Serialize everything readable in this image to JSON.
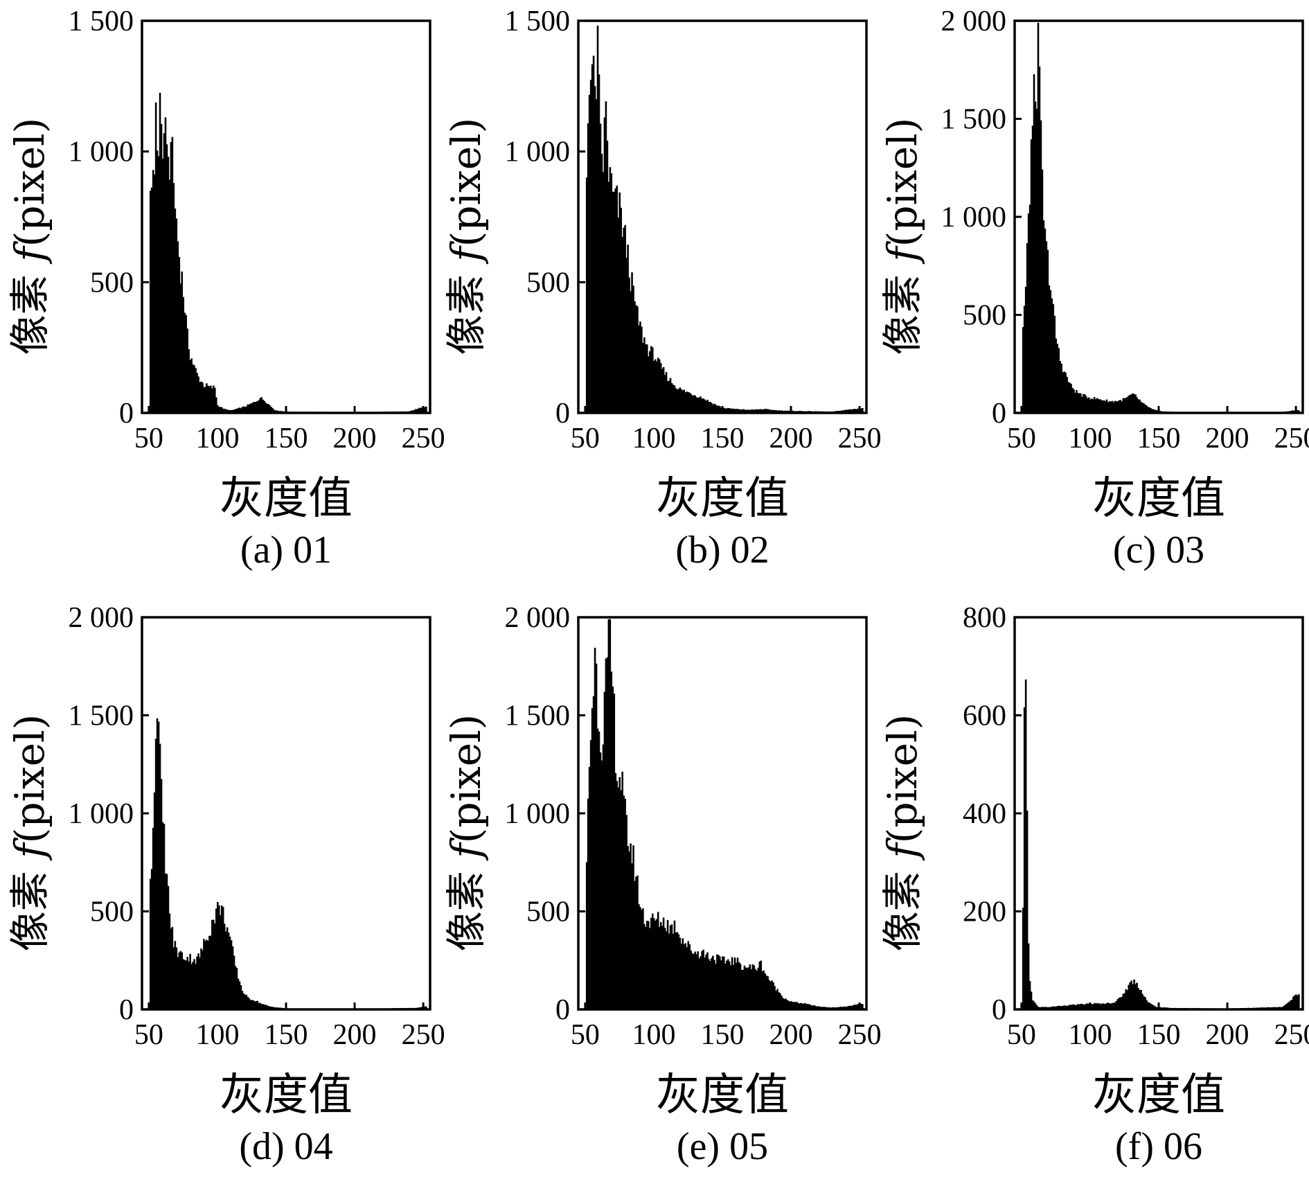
{
  "chart_data": [
    {
      "type": "bar",
      "caption": "(a) 01",
      "xlabel": "灰度值",
      "ylabel": {
        "prefix": "像素 ",
        "var": "f",
        "suffix": "(pixel)"
      },
      "xlim": [
        45,
        255
      ],
      "ylim": [
        0,
        1500
      ],
      "xticks": [
        50,
        100,
        150,
        200,
        250
      ],
      "yticks": [
        0,
        500,
        1000,
        1500
      ],
      "ytick_labels": [
        "0",
        "500",
        "1 000",
        "1 500"
      ],
      "histogram": {
        "x_start": 50,
        "x_end": 252,
        "anchors": [
          [
            50,
            0
          ],
          [
            51,
            880
          ],
          [
            53,
            960
          ],
          [
            55,
            1120
          ],
          [
            57,
            1050
          ],
          [
            58,
            1230
          ],
          [
            60,
            1000
          ],
          [
            61,
            1160
          ],
          [
            63,
            960
          ],
          [
            64,
            1100
          ],
          [
            65,
            880
          ],
          [
            66,
            1180
          ],
          [
            67,
            980
          ],
          [
            68,
            900
          ],
          [
            70,
            750
          ],
          [
            72,
            620
          ],
          [
            74,
            530
          ],
          [
            76,
            420
          ],
          [
            78,
            300
          ],
          [
            80,
            230
          ],
          [
            83,
            180
          ],
          [
            86,
            140
          ],
          [
            90,
            110
          ],
          [
            95,
            100
          ],
          [
            98,
            100
          ],
          [
            100,
            30
          ],
          [
            105,
            15
          ],
          [
            110,
            10
          ],
          [
            120,
            25
          ],
          [
            128,
            45
          ],
          [
            131,
            60
          ],
          [
            134,
            50
          ],
          [
            138,
            30
          ],
          [
            142,
            10
          ],
          [
            150,
            5
          ],
          [
            200,
            3
          ],
          [
            240,
            6
          ],
          [
            245,
            15
          ],
          [
            250,
            25
          ]
        ],
        "zero_after": 252
      }
    },
    {
      "type": "bar",
      "caption": "(b) 02",
      "xlabel": "灰度值",
      "ylabel": {
        "prefix": "像素 ",
        "var": "f",
        "suffix": "(pixel)"
      },
      "xlim": [
        45,
        255
      ],
      "ylim": [
        0,
        1500
      ],
      "xticks": [
        50,
        100,
        150,
        200,
        250
      ],
      "yticks": [
        0,
        500,
        1000,
        1500
      ],
      "ytick_labels": [
        "0",
        "500",
        "1 000",
        "1 500"
      ],
      "histogram": {
        "x_start": 50,
        "x_end": 252,
        "anchors": [
          [
            50,
            0
          ],
          [
            51,
            950
          ],
          [
            53,
            1370
          ],
          [
            55,
            1330
          ],
          [
            57,
            1250
          ],
          [
            59,
            1400
          ],
          [
            61,
            1050
          ],
          [
            63,
            1000
          ],
          [
            65,
            1180
          ],
          [
            67,
            960
          ],
          [
            70,
            850
          ],
          [
            73,
            820
          ],
          [
            76,
            780
          ],
          [
            80,
            650
          ],
          [
            84,
            500
          ],
          [
            88,
            380
          ],
          [
            92,
            300
          ],
          [
            96,
            250
          ],
          [
            100,
            230
          ],
          [
            105,
            180
          ],
          [
            110,
            140
          ],
          [
            115,
            110
          ],
          [
            120,
            90
          ],
          [
            128,
            75
          ],
          [
            135,
            60
          ],
          [
            142,
            40
          ],
          [
            150,
            20
          ],
          [
            160,
            15
          ],
          [
            170,
            12
          ],
          [
            180,
            15
          ],
          [
            190,
            10
          ],
          [
            200,
            8
          ],
          [
            230,
            5
          ],
          [
            245,
            15
          ],
          [
            250,
            18
          ]
        ],
        "zero_after": 252
      }
    },
    {
      "type": "bar",
      "caption": "(c) 03",
      "xlabel": "灰度值",
      "ylabel": {
        "prefix": "像素 ",
        "var": "f",
        "suffix": "(pixel)"
      },
      "xlim": [
        45,
        255
      ],
      "ylim": [
        0,
        2000
      ],
      "xticks": [
        50,
        100,
        150,
        200,
        250
      ],
      "yticks": [
        0,
        500,
        1000,
        1500,
        2000
      ],
      "ytick_labels": [
        "0",
        "500",
        "1 000",
        "1 500",
        "2 000"
      ],
      "histogram": {
        "x_start": 50,
        "x_end": 252,
        "anchors": [
          [
            50,
            0
          ],
          [
            51,
            450
          ],
          [
            53,
            650
          ],
          [
            55,
            1000
          ],
          [
            57,
            1400
          ],
          [
            59,
            1600
          ],
          [
            61,
            1780
          ],
          [
            62,
            1920
          ],
          [
            63,
            1650
          ],
          [
            65,
            1200
          ],
          [
            67,
            900
          ],
          [
            70,
            750
          ],
          [
            72,
            600
          ],
          [
            75,
            400
          ],
          [
            78,
            280
          ],
          [
            82,
            200
          ],
          [
            86,
            140
          ],
          [
            90,
            110
          ],
          [
            95,
            90
          ],
          [
            100,
            80
          ],
          [
            108,
            70
          ],
          [
            115,
            60
          ],
          [
            122,
            65
          ],
          [
            127,
            80
          ],
          [
            130,
            95
          ],
          [
            133,
            90
          ],
          [
            138,
            50
          ],
          [
            145,
            20
          ],
          [
            150,
            10
          ],
          [
            160,
            5
          ],
          [
            200,
            3
          ],
          [
            240,
            5
          ],
          [
            245,
            10
          ],
          [
            250,
            15
          ]
        ],
        "zero_after": 252
      }
    },
    {
      "type": "bar",
      "caption": "(d) 04",
      "xlabel": "灰度值",
      "ylabel": {
        "prefix": "像素 ",
        "var": "f",
        "suffix": "(pixel)"
      },
      "xlim": [
        45,
        255
      ],
      "ylim": [
        0,
        2000
      ],
      "xticks": [
        50,
        100,
        150,
        200,
        250
      ],
      "yticks": [
        0,
        500,
        1000,
        1500,
        2000
      ],
      "ytick_labels": [
        "0",
        "500",
        "1 000",
        "1 500",
        "2 000"
      ],
      "histogram": {
        "x_start": 50,
        "x_end": 252,
        "anchors": [
          [
            50,
            0
          ],
          [
            51,
            650
          ],
          [
            53,
            1000
          ],
          [
            55,
            1400
          ],
          [
            56,
            1720
          ],
          [
            57,
            1450
          ],
          [
            58,
            1300
          ],
          [
            59,
            1100
          ],
          [
            61,
            900
          ],
          [
            63,
            700
          ],
          [
            65,
            500
          ],
          [
            68,
            350
          ],
          [
            71,
            300
          ],
          [
            75,
            280
          ],
          [
            80,
            270
          ],
          [
            85,
            260
          ],
          [
            88,
            300
          ],
          [
            92,
            380
          ],
          [
            96,
            450
          ],
          [
            99,
            520
          ],
          [
            102,
            540
          ],
          [
            105,
            480
          ],
          [
            108,
            400
          ],
          [
            111,
            300
          ],
          [
            114,
            200
          ],
          [
            118,
            100
          ],
          [
            122,
            60
          ],
          [
            128,
            45
          ],
          [
            132,
            30
          ],
          [
            138,
            15
          ],
          [
            150,
            5
          ],
          [
            200,
            3
          ],
          [
            245,
            8
          ],
          [
            250,
            15
          ]
        ],
        "zero_after": 252
      }
    },
    {
      "type": "bar",
      "caption": "(e) 05",
      "xlabel": "灰度值",
      "ylabel": {
        "prefix": "像素 ",
        "var": "f",
        "suffix": "(pixel)"
      },
      "xlim": [
        45,
        255
      ],
      "ylim": [
        0,
        2000
      ],
      "xticks": [
        50,
        100,
        150,
        200,
        250
      ],
      "yticks": [
        0,
        500,
        1000,
        1500,
        2000
      ],
      "ytick_labels": [
        "0",
        "500",
        "1 000",
        "1 500",
        "2 000"
      ],
      "histogram": {
        "x_start": 50,
        "x_end": 252,
        "anchors": [
          [
            50,
            0
          ],
          [
            51,
            800
          ],
          [
            53,
            1300
          ],
          [
            55,
            1600
          ],
          [
            57,
            1850
          ],
          [
            59,
            1650
          ],
          [
            61,
            1450
          ],
          [
            63,
            1500
          ],
          [
            65,
            1700
          ],
          [
            67,
            1850
          ],
          [
            68,
            1920
          ],
          [
            70,
            1650
          ],
          [
            72,
            1400
          ],
          [
            74,
            1200
          ],
          [
            76,
            1230
          ],
          [
            78,
            1050
          ],
          [
            80,
            950
          ],
          [
            83,
            850
          ],
          [
            86,
            750
          ],
          [
            88,
            650
          ],
          [
            90,
            550
          ],
          [
            93,
            480
          ],
          [
            97,
            460
          ],
          [
            102,
            470
          ],
          [
            108,
            460
          ],
          [
            112,
            430
          ],
          [
            116,
            440
          ],
          [
            120,
            380
          ],
          [
            125,
            330
          ],
          [
            130,
            300
          ],
          [
            135,
            300
          ],
          [
            140,
            280
          ],
          [
            145,
            270
          ],
          [
            150,
            250
          ],
          [
            155,
            260
          ],
          [
            160,
            250
          ],
          [
            165,
            230
          ],
          [
            170,
            220
          ],
          [
            175,
            220
          ],
          [
            178,
            240
          ],
          [
            182,
            180
          ],
          [
            186,
            140
          ],
          [
            190,
            100
          ],
          [
            195,
            60
          ],
          [
            200,
            40
          ],
          [
            210,
            30
          ],
          [
            220,
            15
          ],
          [
            230,
            10
          ],
          [
            240,
            15
          ],
          [
            248,
            25
          ],
          [
            252,
            30
          ]
        ],
        "zero_after": 252
      }
    },
    {
      "type": "bar",
      "caption": "(f) 06",
      "xlabel": "灰度值",
      "ylabel": {
        "prefix": "像素 ",
        "var": "f",
        "suffix": "(pixel)"
      },
      "xlim": [
        45,
        255
      ],
      "ylim": [
        0,
        800
      ],
      "xticks": [
        50,
        100,
        150,
        200,
        250
      ],
      "yticks": [
        0,
        200,
        400,
        600,
        800
      ],
      "ytick_labels": [
        "0",
        "200",
        "400",
        "600",
        "800"
      ],
      "histogram": {
        "x_start": 50,
        "x_end": 252,
        "anchors": [
          [
            50,
            0
          ],
          [
            51,
            200
          ],
          [
            52,
            600
          ],
          [
            53,
            680
          ],
          [
            54,
            380
          ],
          [
            55,
            140
          ],
          [
            56,
            60
          ],
          [
            58,
            20
          ],
          [
            62,
            5
          ],
          [
            70,
            5
          ],
          [
            80,
            8
          ],
          [
            90,
            10
          ],
          [
            100,
            12
          ],
          [
            110,
            12
          ],
          [
            118,
            15
          ],
          [
            122,
            25
          ],
          [
            126,
            40
          ],
          [
            129,
            55
          ],
          [
            132,
            60
          ],
          [
            135,
            50
          ],
          [
            138,
            35
          ],
          [
            142,
            15
          ],
          [
            148,
            5
          ],
          [
            160,
            3
          ],
          [
            200,
            2
          ],
          [
            240,
            5
          ],
          [
            245,
            15
          ],
          [
            248,
            25
          ],
          [
            250,
            30
          ]
        ],
        "zero_after": 252
      }
    }
  ]
}
